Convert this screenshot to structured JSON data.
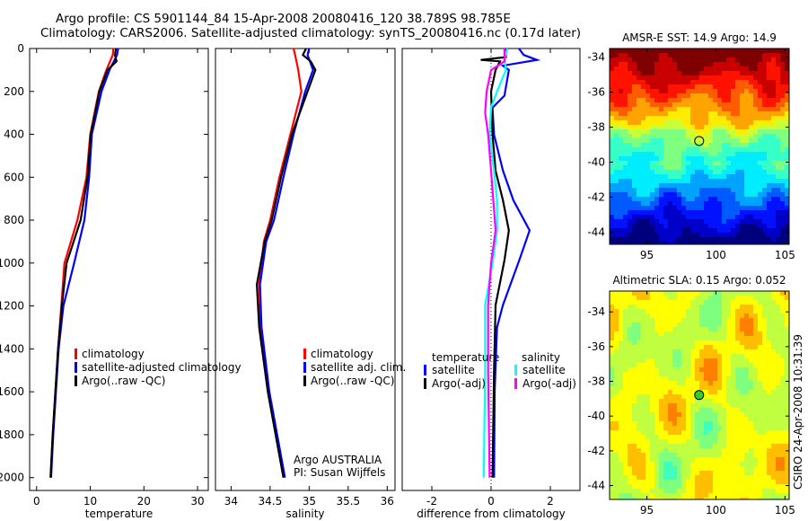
{
  "title": {
    "line1": "Argo profile: CS 5901144_84 15-Apr-2008 20080416_120 38.789S 98.785E",
    "line2": "Climatology: CARS2006. Satellite-adjusted climatology: synTS_20080416.nc (0.17d later)"
  },
  "side_stamp": "CSIRO 24-Apr-2008 10:31:39",
  "chart_data": [
    {
      "type": "line",
      "id": "temperature",
      "xlabel": "temperature",
      "ylabel": "",
      "xlim": [
        -1.3,
        32
      ],
      "ylim": [
        2060,
        0
      ],
      "xticks": [
        0,
        10,
        20,
        30
      ],
      "yticks": [
        0,
        200,
        400,
        600,
        800,
        1000,
        1200,
        1400,
        1600,
        1800,
        2000
      ],
      "legend": [
        "climatology",
        "satellite-adjusted climatology",
        "Argo(..raw -QC)"
      ],
      "legend_position": "lower-right",
      "series": [
        {
          "name": "climatology",
          "color": "#ff0000",
          "depth": [
            0,
            30,
            100,
            200,
            400,
            600,
            800,
            1000,
            1200,
            1400,
            1600,
            1800,
            2000
          ],
          "values": [
            14.3,
            14.2,
            13.0,
            11.6,
            10.0,
            9.3,
            7.6,
            5.2,
            4.6,
            4.0,
            3.5,
            3.0,
            2.6
          ]
        },
        {
          "name": "satellite-adjusted climatology",
          "color": "#0000ff",
          "depth": [
            0,
            30,
            100,
            200,
            400,
            600,
            800,
            1000,
            1200,
            1400,
            1600,
            1800,
            2000
          ],
          "values": [
            15.2,
            15.0,
            13.6,
            12.1,
            10.3,
            9.8,
            8.9,
            7.0,
            5.0,
            4.1,
            3.6,
            3.1,
            2.7
          ]
        },
        {
          "name": "Argo(..raw -QC)",
          "color": "#000000",
          "depth": [
            0,
            30,
            60,
            100,
            200,
            400,
            600,
            800,
            1000,
            1200,
            1400,
            1600,
            1800,
            2000
          ],
          "values": [
            14.8,
            14.6,
            14.9,
            13.2,
            11.7,
            10.1,
            9.5,
            8.2,
            5.6,
            4.7,
            4.0,
            3.5,
            3.0,
            2.6
          ]
        }
      ]
    },
    {
      "type": "line",
      "id": "salinity",
      "xlabel": "salinity",
      "xlim": [
        33.8,
        36.1
      ],
      "ylim": [
        2060,
        0
      ],
      "xticks": [
        34,
        34.5,
        35,
        35.5,
        36
      ],
      "xticklabels": [
        "34",
        "34.5",
        "35",
        "35.5",
        "36"
      ],
      "legend": [
        "climatology",
        "satellite adj. clim.",
        "Argo(..raw -QC)"
      ],
      "legend_position": "lower-right",
      "annotation": [
        "Argo AUSTRALIA",
        "PI: Susan Wijffels"
      ],
      "series": [
        {
          "name": "climatology",
          "color": "#ff0000",
          "depth": [
            0,
            30,
            100,
            200,
            400,
            600,
            800,
            900,
            1100,
            1300,
            1600,
            2000
          ],
          "values": [
            34.8,
            34.82,
            34.86,
            34.9,
            34.76,
            34.62,
            34.5,
            34.42,
            34.36,
            34.38,
            34.48,
            34.68
          ]
        },
        {
          "name": "satellite adj. clim.",
          "color": "#0000ff",
          "depth": [
            0,
            30,
            100,
            200,
            400,
            600,
            800,
            900,
            1100,
            1300,
            1600,
            2000
          ],
          "values": [
            35.0,
            34.98,
            35.05,
            34.95,
            34.8,
            34.67,
            34.55,
            34.45,
            34.37,
            34.39,
            34.49,
            34.69
          ]
        },
        {
          "name": "Argo(..raw -QC)",
          "color": "#000000",
          "depth": [
            0,
            30,
            60,
            100,
            200,
            400,
            600,
            800,
            900,
            1100,
            1300,
            1600,
            2000
          ],
          "values": [
            34.96,
            34.92,
            35.02,
            35.08,
            34.98,
            34.78,
            34.64,
            34.52,
            34.43,
            34.33,
            34.36,
            34.47,
            34.67
          ]
        }
      ]
    },
    {
      "type": "line",
      "id": "difference",
      "xlabel": "difference from climatology",
      "xlim": [
        -3,
        3
      ],
      "ylim": [
        2060,
        0
      ],
      "xticks": [
        -2,
        0,
        2
      ],
      "legend_headers": [
        "temperature",
        "salinity"
      ],
      "legend": [
        "satellite",
        "Argo(-adj)",
        "satellite",
        "Argo(-adj)"
      ],
      "legend_position": "lower-center",
      "series": [
        {
          "name": "temperature satellite",
          "color": "#0000ff",
          "depth": [
            0,
            30,
            53,
            80,
            100,
            220,
            276,
            402,
            569,
            707,
            848,
            987,
            1196,
            1300,
            1600,
            2000
          ],
          "values": [
            0.94,
            1.1,
            1.55,
            0.4,
            0.6,
            0.45,
            0.05,
            0.1,
            0.4,
            0.75,
            1.3,
            0.95,
            0.4,
            0.2,
            0.12,
            0.1
          ]
        },
        {
          "name": "temperature Argo(-adj)",
          "color": "#000000",
          "depth": [
            0,
            40,
            53,
            60,
            100,
            200,
            400,
            570,
            707,
            848,
            987,
            1196,
            1500,
            2000
          ],
          "values": [
            0.5,
            0.5,
            -0.35,
            0.3,
            0.15,
            0.0,
            0.05,
            0.15,
            0.4,
            0.6,
            0.45,
            0.15,
            0.1,
            0.05
          ]
        },
        {
          "name": "salinity satellite",
          "color": "#00ffff",
          "depth": [
            0,
            50,
            100,
            200,
            276,
            400,
            570,
            707,
            848,
            1000,
            1196,
            1500,
            2000
          ],
          "values": [
            0.55,
            0.45,
            0.5,
            0.2,
            0.0,
            -0.05,
            0.1,
            0.2,
            0.2,
            0.05,
            -0.2,
            -0.2,
            -0.25
          ]
        },
        {
          "name": "salinity Argo(-adj)",
          "color": "#ff00ff",
          "depth": [
            0,
            60,
            100,
            200,
            300,
            400,
            570,
            848,
            1000,
            1196,
            1500,
            2000
          ],
          "values": [
            0.45,
            0.45,
            0.0,
            -0.15,
            -0.2,
            -0.1,
            0.0,
            0.15,
            0.0,
            -0.1,
            -0.1,
            -0.05
          ]
        }
      ]
    },
    {
      "type": "heatmap",
      "id": "sst-map",
      "title": "AMSR-E SST: 14.9 Argo: 14.9",
      "xlim": [
        92.3,
        105.3
      ],
      "ylim": [
        -44.7,
        -33.5
      ],
      "xticks": [
        95,
        100,
        105
      ],
      "yticks": [
        -34,
        -36,
        -38,
        -40,
        -42,
        -44
      ],
      "marker": {
        "lon": 98.785,
        "lat": -38.789
      },
      "colormap": "jet"
    },
    {
      "type": "heatmap",
      "id": "sla-map",
      "title": "Altimetric SLA: 0.15 Argo: 0.052",
      "xlim": [
        92.3,
        105.3
      ],
      "ylim": [
        -44.8,
        -32.8
      ],
      "xticks": [
        95,
        100,
        105
      ],
      "yticks": [
        -34,
        -36,
        -38,
        -40,
        -42,
        -44
      ],
      "marker": {
        "lon": 98.785,
        "lat": -38.789
      },
      "colormap": "jet"
    }
  ]
}
